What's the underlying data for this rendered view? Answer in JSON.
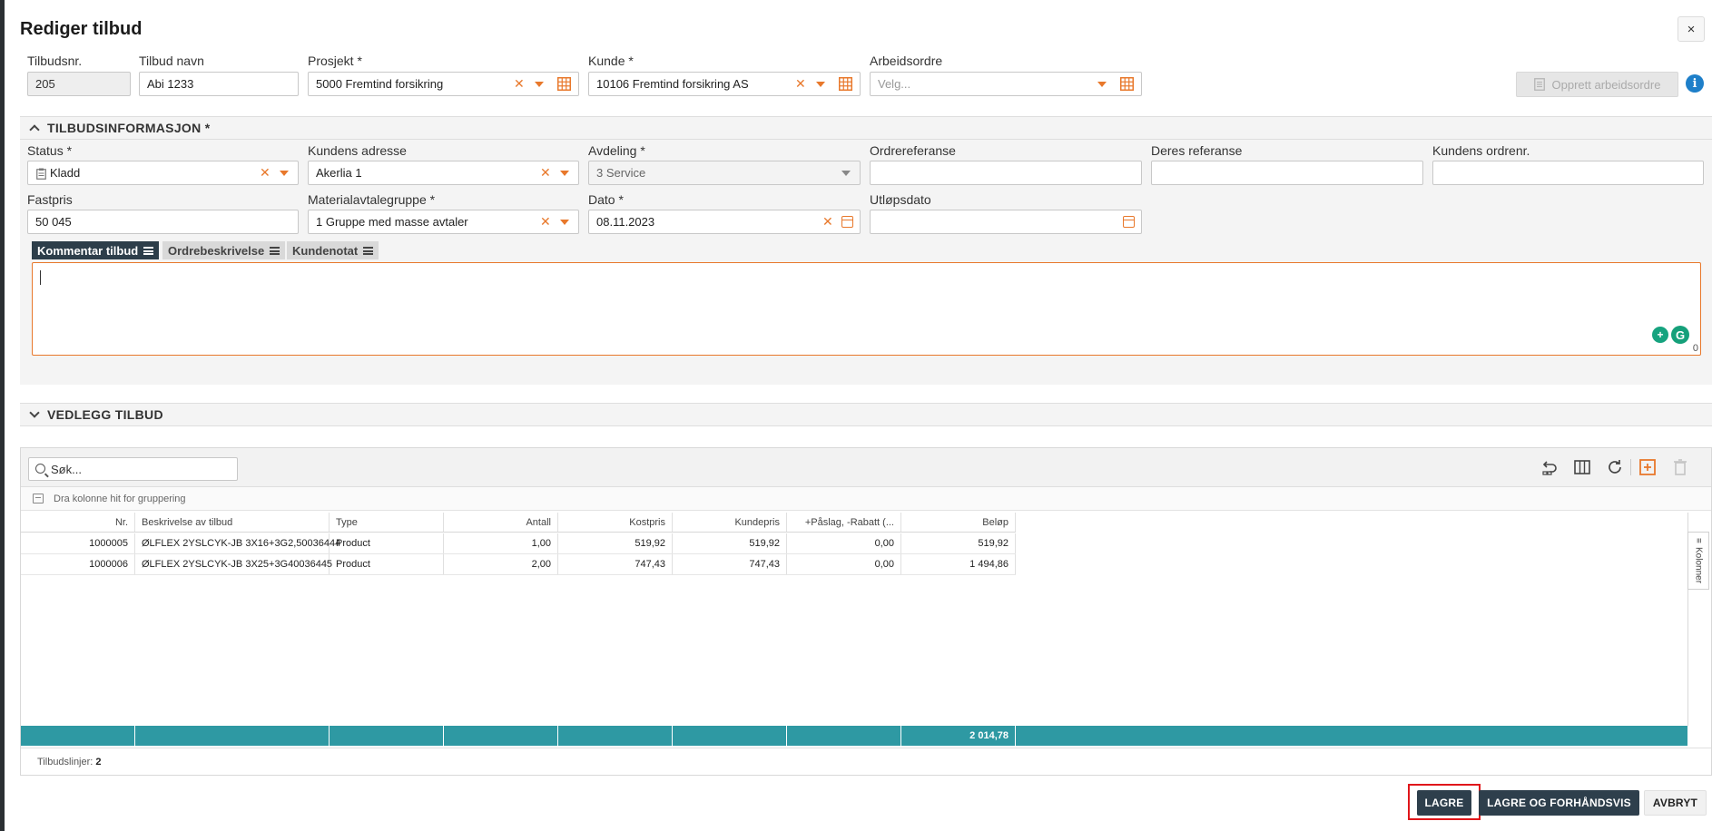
{
  "dialog": {
    "title": "Rediger tilbud",
    "close_glyph": "×"
  },
  "header_fields": {
    "tilbudsnr": {
      "label": "Tilbudsnr.",
      "value": "205"
    },
    "tilbud_navn": {
      "label": "Tilbud navn",
      "value": "Abi 1233"
    },
    "prosjekt": {
      "label": "Prosjekt *",
      "value": "5000 Fremtind forsikring"
    },
    "kunde": {
      "label": "Kunde *",
      "value": "10106 Fremtind forsikring AS"
    },
    "arbeidsordre": {
      "label": "Arbeidsordre",
      "placeholder": "Velg..."
    },
    "create_work_order_button": "Opprett arbeidsordre"
  },
  "section_info": {
    "title": "TILBUDSINFORMASJON *",
    "status": {
      "label": "Status *",
      "value": "Kladd"
    },
    "kundens_adresse": {
      "label": "Kundens adresse",
      "value": "Akerlia 1"
    },
    "avdeling": {
      "label": "Avdeling *",
      "value": "3 Service"
    },
    "ordrereferanse": {
      "label": "Ordrereferanse",
      "value": ""
    },
    "deres_referanse": {
      "label": "Deres referanse",
      "value": ""
    },
    "kundens_ordrenr": {
      "label": "Kundens ordrenr.",
      "value": ""
    },
    "fastpris": {
      "label": "Fastpris",
      "value": "50 045"
    },
    "materialavtalegruppe": {
      "label": "Materialavtalegruppe *",
      "value": "1 Gruppe med masse avtaler"
    },
    "dato": {
      "label": "Dato *",
      "value": "08.11.2023"
    },
    "utlopsdato": {
      "label": "Utløpsdato",
      "value": ""
    },
    "tabs": [
      {
        "label": "Kommentar tilbud",
        "active": true
      },
      {
        "label": "Ordrebeskrivelse",
        "active": false
      },
      {
        "label": "Kundenotat",
        "active": false
      }
    ],
    "char_count": "0"
  },
  "section_attachments": {
    "title": "VEDLEGG TILBUD"
  },
  "grid": {
    "search_placeholder": "Søk...",
    "group_hint": "Dra kolonne hit for gruppering",
    "columns": [
      "Nr.",
      "Beskrivelse av tilbud",
      "Type",
      "Antall",
      "Kostpris",
      "Kundepris",
      "+Påslag, -Rabatt (...",
      "Beløp"
    ],
    "rows": [
      [
        "1000005",
        "ØLFLEX 2YSLCYK-JB 3X16+3G2,50036444",
        "Product",
        "1,00",
        "519,92",
        "519,92",
        "0,00",
        "519,92"
      ],
      [
        "1000006",
        "ØLFLEX 2YSLCYK-JB 3X25+3G40036445",
        "Product",
        "2,00",
        "747,43",
        "747,43",
        "0,00",
        "1 494,86"
      ]
    ],
    "total": "2 014,78",
    "side_tab": "Kolonner",
    "status_label": "Tilbudslinjer:",
    "status_count": "2"
  },
  "footer_buttons": {
    "save": "LAGRE",
    "save_preview": "LAGRE OG FORHÅNDSVIS",
    "cancel": "AVBRYT"
  },
  "colors": {
    "accent_orange": "#e8782b",
    "dark_button": "#2e3f4c",
    "total_row": "#2e99a3",
    "highlight": "#e0161b"
  }
}
